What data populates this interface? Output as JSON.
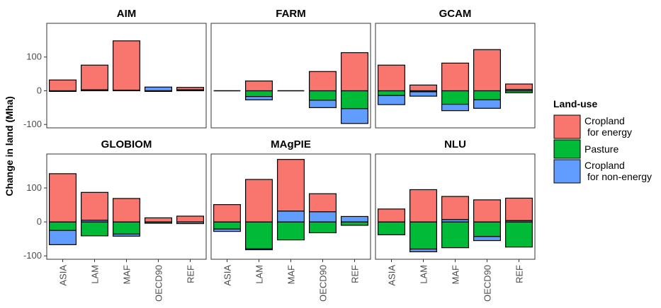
{
  "chart_data": {
    "type": "bar",
    "ylabel": "Change in land (Mha)",
    "ylim": [
      -110,
      200
    ],
    "yticks": [
      -100,
      0,
      100
    ],
    "categories": [
      "ASIA",
      "LAM",
      "MAF",
      "OECD90",
      "REF"
    ],
    "legend": {
      "title": "Land-use",
      "placement": "right",
      "entries": [
        {
          "key": "energy",
          "line1": "Cropland",
          "line2": "for energy",
          "color": "#F8766D"
        },
        {
          "key": "pasture",
          "line1": "Pasture",
          "line2": "",
          "color": "#00BA38"
        },
        {
          "key": "nonenergy",
          "line1": "Cropland",
          "line2": "for non-energy",
          "color": "#619CFF"
        }
      ]
    },
    "panels": [
      {
        "title": "AIM",
        "bars": [
          {
            "category": "ASIA",
            "energy": 32,
            "pasture": -2,
            "nonenergy": 0
          },
          {
            "category": "LAM",
            "energy": 73,
            "pasture": 0,
            "nonenergy": 3
          },
          {
            "category": "MAF",
            "energy": 146,
            "pasture": 0,
            "nonenergy": 2
          },
          {
            "category": "OECD90",
            "energy": 0,
            "pasture": -2,
            "nonenergy": 11
          },
          {
            "category": "REF",
            "energy": 7,
            "pasture": 2,
            "nonenergy": 1
          }
        ]
      },
      {
        "title": "FARM",
        "bars": [
          {
            "category": "ASIA",
            "energy": 0,
            "pasture": 0,
            "nonenergy": 0
          },
          {
            "category": "LAM",
            "energy": 29,
            "pasture": -17,
            "nonenergy": -10
          },
          {
            "category": "MAF",
            "energy": 0,
            "pasture": 0,
            "nonenergy": 0
          },
          {
            "category": "OECD90",
            "energy": 57,
            "pasture": -28,
            "nonenergy": -22
          },
          {
            "category": "REF",
            "energy": 113,
            "pasture": -53,
            "nonenergy": -44
          }
        ]
      },
      {
        "title": "GCAM",
        "bars": [
          {
            "category": "ASIA",
            "energy": 76,
            "pasture": -14,
            "nonenergy": -27
          },
          {
            "category": "LAM",
            "energy": 17,
            "pasture": -3,
            "nonenergy": -13
          },
          {
            "category": "MAF",
            "energy": 82,
            "pasture": -40,
            "nonenergy": -19
          },
          {
            "category": "OECD90",
            "energy": 122,
            "pasture": -27,
            "nonenergy": -25
          },
          {
            "category": "REF",
            "energy": 16,
            "pasture": -6,
            "nonenergy": 4
          }
        ]
      },
      {
        "title": "GLOBIOM",
        "bars": [
          {
            "category": "ASIA",
            "energy": 142,
            "pasture": -25,
            "nonenergy": -42
          },
          {
            "category": "LAM",
            "energy": 82,
            "pasture": -41,
            "nonenergy": 5
          },
          {
            "category": "MAF",
            "energy": 69,
            "pasture": -36,
            "nonenergy": -6
          },
          {
            "category": "OECD90",
            "energy": 12,
            "pasture": -4,
            "nonenergy": 0
          },
          {
            "category": "REF",
            "energy": 17,
            "pasture": 0,
            "nonenergy": -5
          }
        ]
      },
      {
        "title": "MAgPIE",
        "bars": [
          {
            "category": "ASIA",
            "energy": 51,
            "pasture": -21,
            "nonenergy": -7
          },
          {
            "category": "LAM",
            "energy": 125,
            "pasture": -79,
            "nonenergy": -3
          },
          {
            "category": "MAF",
            "energy": 152,
            "pasture": -53,
            "nonenergy": 32
          },
          {
            "category": "OECD90",
            "energy": 53,
            "pasture": -32,
            "nonenergy": 30
          },
          {
            "category": "REF",
            "energy": 0,
            "pasture": -10,
            "nonenergy": 16
          }
        ]
      },
      {
        "title": "NLU",
        "bars": [
          {
            "category": "ASIA",
            "energy": 38,
            "pasture": -38,
            "nonenergy": 0
          },
          {
            "category": "LAM",
            "energy": 95,
            "pasture": -80,
            "nonenergy": -8
          },
          {
            "category": "MAF",
            "energy": 68,
            "pasture": -76,
            "nonenergy": 7
          },
          {
            "category": "OECD90",
            "energy": 65,
            "pasture": -43,
            "nonenergy": -12
          },
          {
            "category": "REF",
            "energy": 66,
            "pasture": -74,
            "nonenergy": 4
          }
        ]
      }
    ]
  }
}
